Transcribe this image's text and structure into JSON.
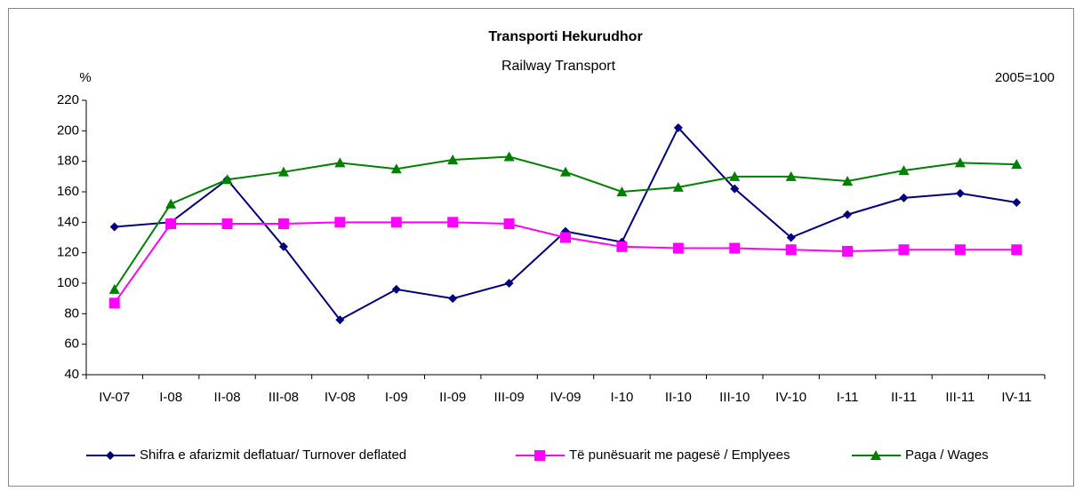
{
  "chart_data": {
    "type": "line",
    "title": "Transporti Hekurudhor",
    "subtitle": "Railway Transport",
    "y_label": "%",
    "annotation": "2005=100",
    "categories": [
      "IV-07",
      "I-08",
      "II-08",
      "III-08",
      "IV-08",
      "I-09",
      "II-09",
      "III-09",
      "IV-09",
      "I-10",
      "II-10",
      "III-10",
      "IV-10",
      "I-11",
      "II-11",
      "III-11",
      "IV-11"
    ],
    "series": [
      {
        "name": "Shifra e afarizmit deflatuar/ Turnover deflated",
        "color": "#000080",
        "marker": "diamond",
        "values": [
          137,
          140,
          168,
          124,
          76,
          96,
          90,
          100,
          134,
          127,
          202,
          162,
          130,
          145,
          156,
          159,
          153
        ]
      },
      {
        "name": "Të punësuarit me pagesë / Emplyees",
        "color": "#ff00ff",
        "marker": "square",
        "values": [
          87,
          139,
          139,
          139,
          140,
          140,
          140,
          139,
          130,
          124,
          123,
          123,
          122,
          121,
          122,
          122,
          122
        ]
      },
      {
        "name": "Paga / Wages",
        "color": "#008000",
        "marker": "triangle",
        "values": [
          96,
          152,
          168,
          173,
          179,
          175,
          181,
          183,
          173,
          160,
          163,
          170,
          170,
          167,
          174,
          179,
          178
        ]
      }
    ],
    "ylim": [
      40,
      220
    ],
    "yticks": [
      40,
      60,
      80,
      100,
      120,
      140,
      160,
      180,
      200,
      220
    ],
    "grid": false,
    "legend": "bottom"
  }
}
